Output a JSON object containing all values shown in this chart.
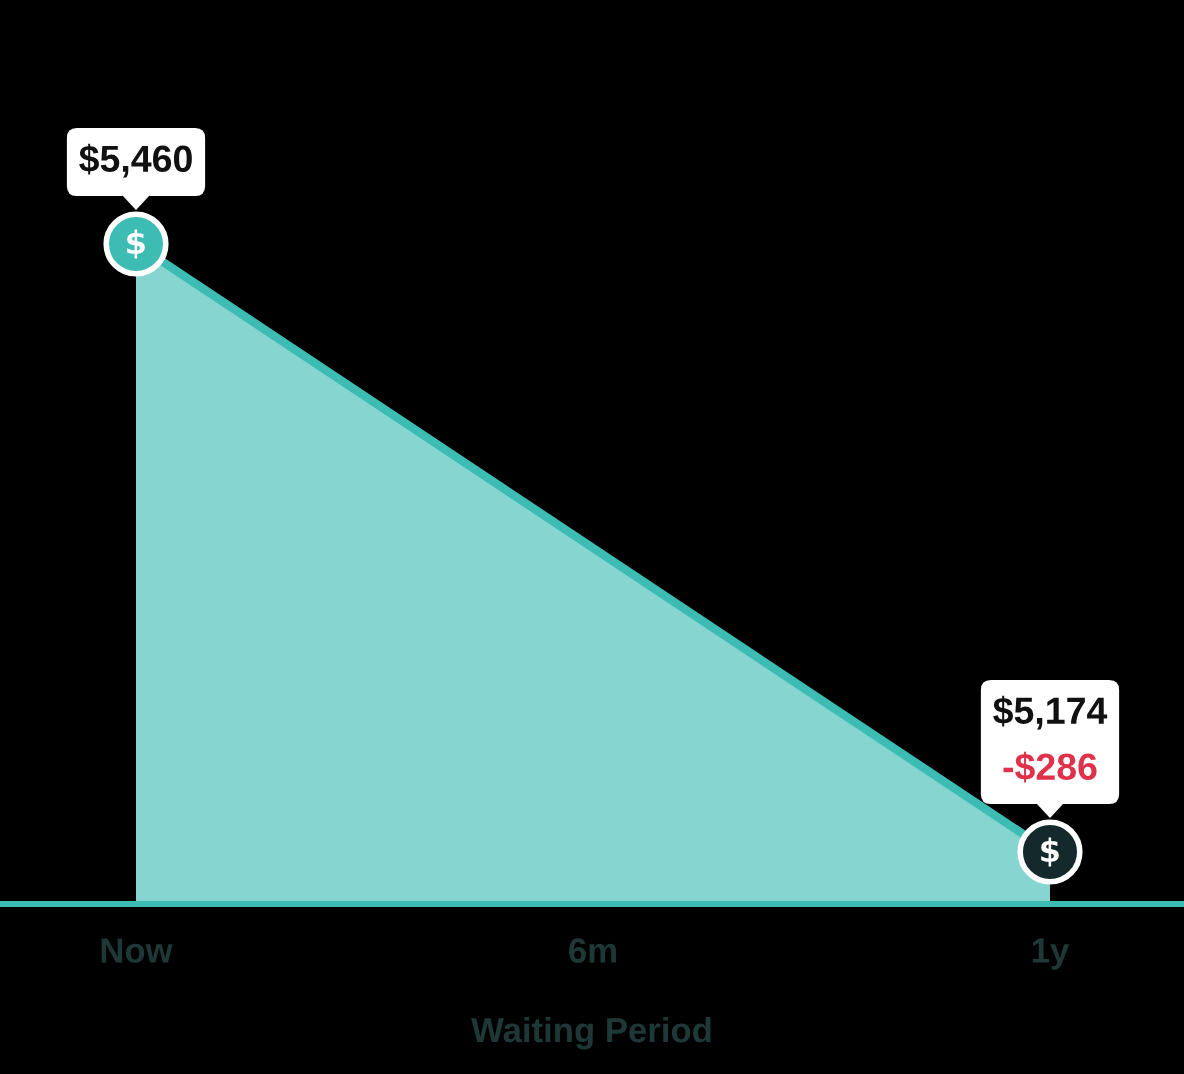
{
  "chart_data": {
    "type": "area",
    "xlabel": "Waiting Period",
    "categories": [
      "Now",
      "6m",
      "1y"
    ],
    "series": [
      {
        "x": [
          "Now",
          "1y"
        ],
        "values": [
          5460,
          5174
        ],
        "color": "#3dbcb4",
        "colors": [
          "#3dbcb4",
          "#13292b"
        ],
        "value_labels": [
          "$5,460",
          "$5,174"
        ]
      }
    ],
    "annotations": [
      {
        "text": "-$286",
        "x": "1y",
        "y": 5174
      }
    ],
    "tick_labels": "x",
    "marker": "circle"
  }
}
